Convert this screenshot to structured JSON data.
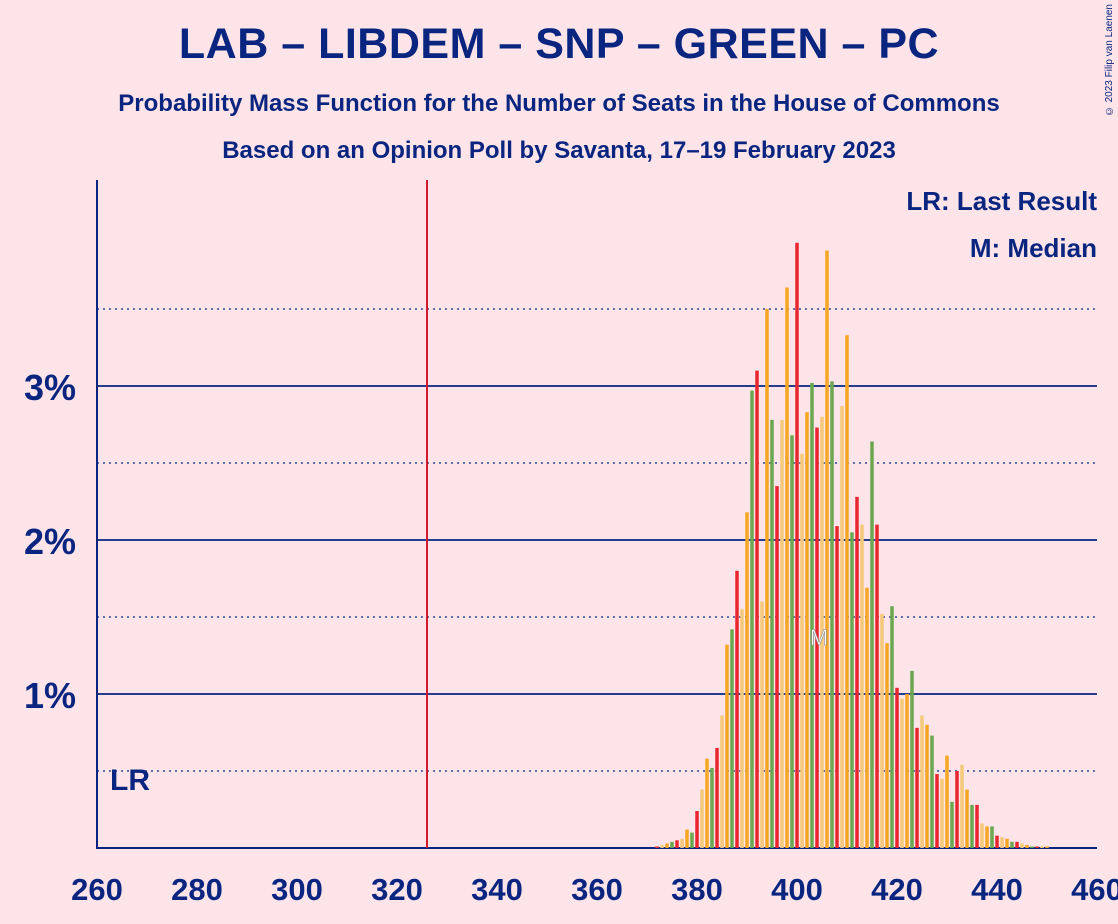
{
  "title": "LAB – LIBDEM – SNP – GREEN – PC",
  "subtitle1": "Probability Mass Function for the Number of Seats in the House of Commons",
  "subtitle2": "Based on an Opinion Poll by Savanta, 17–19 February 2023",
  "copyright": "© 2023 Filip van Laenen",
  "legend": {
    "lr": "LR: Last Result",
    "m": "M: Median"
  },
  "markers": {
    "lr_label": "LR",
    "median_label": "M"
  },
  "colors": {
    "background": "#fde4e8",
    "text": "#0a2580",
    "lr_line": "#d01c2a",
    "bars": [
      "#e8262d",
      "#f5c97a",
      "#f5a623",
      "#6aa84f"
    ]
  },
  "chart_data": {
    "type": "bar",
    "xlim": [
      260,
      460
    ],
    "ylim": [
      0,
      4.3
    ],
    "x_ticks": [
      "260",
      "280",
      "300",
      "320",
      "340",
      "360",
      "380",
      "400",
      "420",
      "440",
      "460"
    ],
    "y_ticks": [
      "1%",
      "2%",
      "3%"
    ],
    "last_result": 326,
    "median": 404,
    "x": [
      372,
      373,
      374,
      375,
      376,
      377,
      378,
      379,
      380,
      381,
      382,
      383,
      384,
      385,
      386,
      387,
      388,
      389,
      390,
      391,
      392,
      393,
      394,
      395,
      396,
      397,
      398,
      399,
      400,
      401,
      402,
      403,
      404,
      405,
      406,
      407,
      408,
      409,
      410,
      411,
      412,
      413,
      414,
      415,
      416,
      417,
      418,
      419,
      420,
      421,
      422,
      423,
      424,
      425,
      426,
      427,
      428,
      429,
      430,
      431,
      432,
      433,
      434,
      435,
      436,
      437,
      438,
      439,
      440,
      441,
      442,
      443,
      444,
      445,
      446,
      447,
      448,
      449,
      450
    ],
    "values": [
      0.01,
      0.02,
      0.03,
      0.04,
      0.05,
      0.06,
      0.12,
      0.1,
      0.24,
      0.38,
      0.58,
      0.52,
      0.65,
      0.86,
      1.32,
      1.42,
      1.8,
      1.55,
      2.18,
      2.97,
      3.1,
      1.6,
      3.5,
      2.78,
      2.35,
      2.78,
      3.64,
      2.68,
      3.93,
      2.56,
      2.83,
      3.02,
      2.73,
      2.8,
      3.88,
      3.03,
      2.09,
      2.87,
      3.33,
      2.05,
      2.28,
      2.1,
      1.69,
      2.64,
      2.1,
      1.52,
      1.33,
      1.57,
      1.04,
      0.97,
      1.0,
      1.15,
      0.78,
      0.86,
      0.8,
      0.73,
      0.48,
      0.45,
      0.6,
      0.3,
      0.5,
      0.54,
      0.38,
      0.28,
      0.28,
      0.16,
      0.14,
      0.14,
      0.08,
      0.07,
      0.06,
      0.04,
      0.04,
      0.03,
      0.02,
      0.01,
      0.01,
      0.01,
      0.01
    ]
  }
}
